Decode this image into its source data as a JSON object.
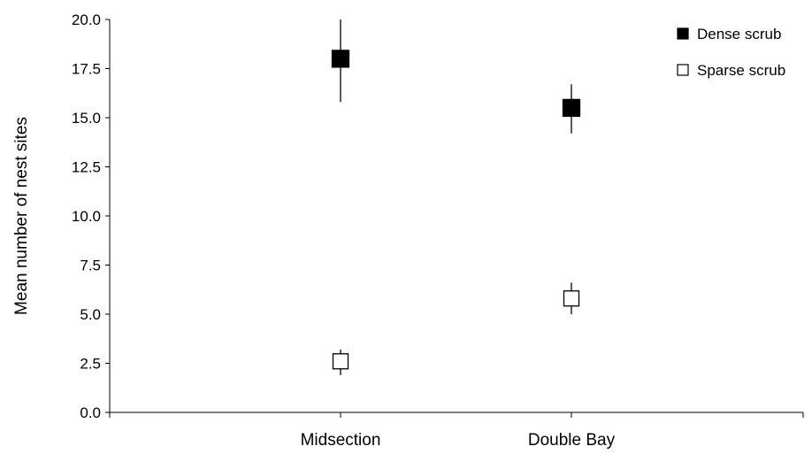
{
  "chart_data": {
    "type": "scatter",
    "title": "",
    "xlabel": "",
    "ylabel": "Mean number of nest sites",
    "categories": [
      "Midsection",
      "Double Bay"
    ],
    "ylim": [
      0,
      20
    ],
    "yticks": [
      "0.0",
      "2.5",
      "5.0",
      "7.5",
      "10.0",
      "12.5",
      "15.0",
      "17.5",
      "20.0"
    ],
    "grid": false,
    "legend_position": "top-right",
    "series": [
      {
        "name": "Dense scrub",
        "marker": "filled-square",
        "color": "#000000",
        "values": [
          18.0,
          15.5
        ],
        "error_low": [
          15.8,
          14.2
        ],
        "error_high": [
          20.0,
          16.7
        ]
      },
      {
        "name": "Sparse scrub",
        "marker": "open-square",
        "color": "#000000",
        "values": [
          2.6,
          5.8
        ],
        "error_low": [
          1.9,
          5.0
        ],
        "error_high": [
          3.2,
          6.6
        ]
      }
    ]
  }
}
